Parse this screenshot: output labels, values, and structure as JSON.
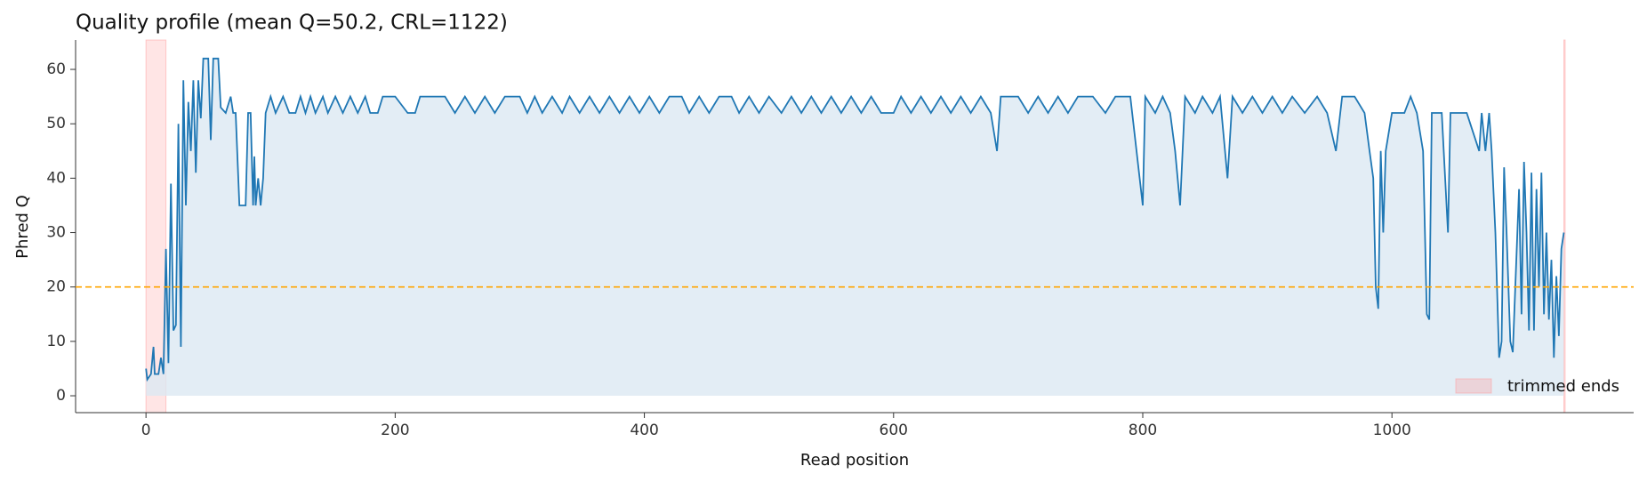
{
  "chart_data": {
    "type": "line",
    "title": "Quality profile (mean Q=50.2, CRL=1122)",
    "x_label": "Read position",
    "y_label": "Phred Q",
    "xlim": [
      -56.5,
      1194
    ],
    "ylim": [
      -3.1,
      65.4
    ],
    "xticks": [
      0,
      200,
      400,
      600,
      800,
      1000
    ],
    "yticks": [
      0,
      10,
      20,
      30,
      40,
      50,
      60
    ],
    "series": [
      {
        "color": "#1f77b4",
        "fill": "#dce9f3",
        "x": [
          0,
          1,
          4,
          6,
          7,
          10,
          12,
          14,
          16,
          18,
          20,
          22,
          24,
          26,
          28,
          30,
          32,
          34,
          36,
          38,
          40,
          42,
          44,
          46,
          50,
          52,
          54,
          58,
          60,
          64,
          68,
          70,
          72,
          75,
          80,
          82,
          84,
          86,
          87,
          88,
          90,
          92,
          94,
          96,
          100,
          104,
          110,
          115,
          120,
          124,
          128,
          132,
          136,
          142,
          146,
          152,
          158,
          164,
          170,
          176,
          180,
          186,
          190,
          200,
          210,
          216,
          220,
          240,
          248,
          256,
          264,
          272,
          280,
          288,
          300,
          306,
          312,
          318,
          326,
          334,
          340,
          348,
          356,
          364,
          372,
          380,
          388,
          396,
          404,
          412,
          420,
          430,
          436,
          444,
          452,
          460,
          470,
          476,
          484,
          492,
          500,
          510,
          518,
          526,
          534,
          542,
          550,
          558,
          566,
          574,
          582,
          590,
          600,
          606,
          614,
          622,
          630,
          638,
          646,
          654,
          662,
          670,
          678,
          683,
          686,
          700,
          708,
          716,
          724,
          732,
          740,
          748,
          760,
          770,
          778,
          790,
          800,
          802,
          810,
          816,
          822,
          826,
          830,
          834,
          842,
          848,
          856,
          862,
          868,
          872,
          880,
          888,
          896,
          904,
          912,
          920,
          930,
          940,
          948,
          955,
          960,
          970,
          978,
          982,
          985,
          987,
          989,
          991,
          993,
          995,
          1000,
          1010,
          1015,
          1020,
          1025,
          1028,
          1030,
          1032,
          1040,
          1045,
          1047,
          1060,
          1070,
          1072,
          1075,
          1078,
          1080,
          1083,
          1086,
          1088,
          1090,
          1092,
          1095,
          1097,
          1099,
          1102,
          1104,
          1106,
          1108,
          1110,
          1112,
          1114,
          1116,
          1118,
          1120,
          1122,
          1124,
          1126,
          1128,
          1130,
          1132,
          1134,
          1136,
          1138
        ],
        "values": [
          5,
          3,
          4,
          9,
          4,
          4,
          7,
          4,
          27,
          6,
          39,
          12,
          13,
          50,
          9,
          58,
          35,
          54,
          45,
          58,
          41,
          58,
          51,
          62,
          62,
          47,
          62,
          62,
          53,
          52,
          55,
          52,
          52,
          35,
          35,
          52,
          52,
          35,
          44,
          35,
          40,
          35,
          40,
          52,
          55,
          52,
          55,
          52,
          52,
          55,
          52,
          55,
          52,
          55,
          52,
          55,
          52,
          55,
          52,
          55,
          52,
          52,
          55,
          55,
          52,
          52,
          55,
          55,
          52,
          55,
          52,
          55,
          52,
          55,
          55,
          52,
          55,
          52,
          55,
          52,
          55,
          52,
          55,
          52,
          55,
          52,
          55,
          52,
          55,
          52,
          55,
          55,
          52,
          55,
          52,
          55,
          55,
          52,
          55,
          52,
          55,
          52,
          55,
          52,
          55,
          52,
          55,
          52,
          55,
          52,
          55,
          52,
          52,
          55,
          52,
          55,
          52,
          55,
          52,
          55,
          52,
          55,
          52,
          45,
          55,
          55,
          52,
          55,
          52,
          55,
          52,
          55,
          55,
          52,
          55,
          55,
          35,
          55,
          52,
          55,
          52,
          45,
          35,
          55,
          52,
          55,
          52,
          55,
          40,
          55,
          52,
          55,
          52,
          55,
          52,
          55,
          52,
          55,
          52,
          45,
          55,
          55,
          52,
          45,
          40,
          20,
          16,
          45,
          30,
          45,
          52,
          52,
          55,
          52,
          45,
          15,
          14,
          52,
          52,
          30,
          52,
          52,
          45,
          52,
          45,
          52,
          45,
          30,
          7,
          10,
          42,
          30,
          10,
          8,
          20,
          38,
          15,
          43,
          30,
          12,
          41,
          12,
          38,
          20,
          41,
          15,
          30,
          14,
          25,
          7,
          22,
          11,
          27,
          30
        ]
      }
    ],
    "threshold": 20,
    "threshold_color": "#ffa500",
    "spans": [
      [
        0,
        16
      ],
      [
        1138,
        1139
      ]
    ],
    "span_color": "#ff9999",
    "legend": {
      "label": "trimmed ends",
      "position": "lower right"
    }
  }
}
